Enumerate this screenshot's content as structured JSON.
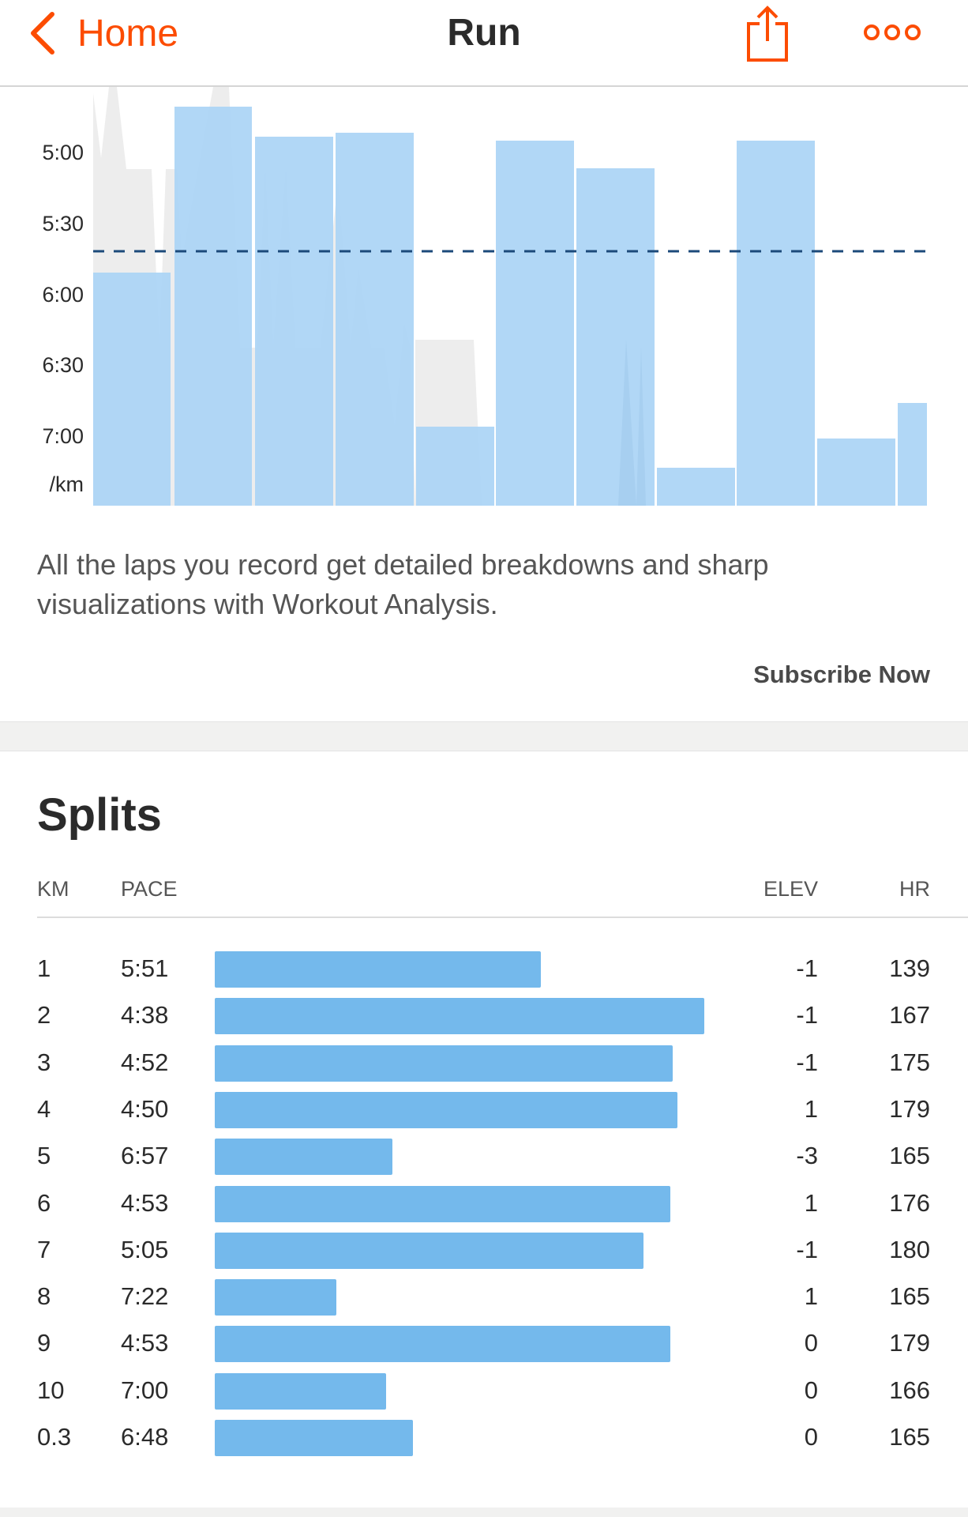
{
  "header": {
    "back_label": "Home",
    "title": "Run",
    "accent_color": "#fc4c02",
    "icons": [
      "chevron-left-icon",
      "share-icon",
      "more-icon"
    ]
  },
  "lap_chart": {
    "y_ticks": [
      "5:00",
      "5:30",
      "6:00",
      "6:30",
      "7:00"
    ],
    "unit_label": "/km",
    "bar_color": "#a9d3f5",
    "dashed_line_color": "#1c4a7a"
  },
  "promo": {
    "text": "All the laps you record get detailed breakdowns and sharp visualizations with Workout Analysis.",
    "cta": "Subscribe Now"
  },
  "splits": {
    "title": "Splits",
    "columns": {
      "km": "KM",
      "pace": "PACE",
      "elev": "ELEV",
      "hr": "HR"
    },
    "bar_color": "#74b9ec",
    "rows": [
      {
        "km": "1",
        "pace": "5:51",
        "elev": "-1",
        "hr": "139"
      },
      {
        "km": "2",
        "pace": "4:38",
        "elev": "-1",
        "hr": "167"
      },
      {
        "km": "3",
        "pace": "4:52",
        "elev": "-1",
        "hr": "175"
      },
      {
        "km": "4",
        "pace": "4:50",
        "elev": "1",
        "hr": "179"
      },
      {
        "km": "5",
        "pace": "6:57",
        "elev": "-3",
        "hr": "165"
      },
      {
        "km": "6",
        "pace": "4:53",
        "elev": "1",
        "hr": "176"
      },
      {
        "km": "7",
        "pace": "5:05",
        "elev": "-1",
        "hr": "180"
      },
      {
        "km": "8",
        "pace": "7:22",
        "elev": "1",
        "hr": "165"
      },
      {
        "km": "9",
        "pace": "4:53",
        "elev": "0",
        "hr": "179"
      },
      {
        "km": "10",
        "pace": "7:00",
        "elev": "0",
        "hr": "166"
      },
      {
        "km": "0.3",
        "pace": "6:48",
        "elev": "0",
        "hr": "165"
      }
    ]
  }
}
